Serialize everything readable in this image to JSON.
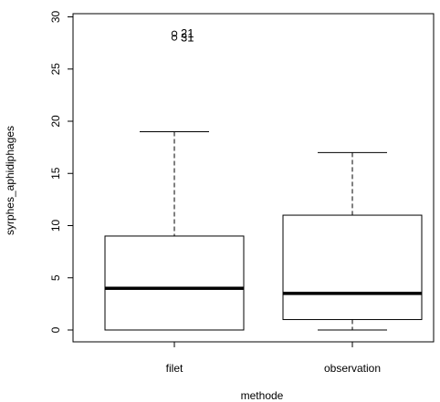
{
  "chart_data": {
    "type": "boxplot",
    "title": "",
    "xlabel": "methode",
    "ylabel": "syrphes_aphidiphages",
    "ylim": [
      -1,
      30
    ],
    "yticks": [
      0,
      5,
      10,
      15,
      20,
      25,
      30
    ],
    "ytick_labels": [
      "0",
      "5",
      "10",
      "15",
      "20",
      "25",
      "30"
    ],
    "categories": [
      "filet",
      "observation"
    ],
    "boxes": [
      {
        "category": "filet",
        "whisker_low": 0,
        "q1": 0,
        "median": 4,
        "q3": 9,
        "whisker_high": 19,
        "outliers": [
          {
            "value": 28.4,
            "label": "21"
          },
          {
            "value": 28.0,
            "label": "31"
          }
        ]
      },
      {
        "category": "observation",
        "whisker_low": 0,
        "q1": 1,
        "median": 3.5,
        "q3": 11,
        "whisker_high": 17,
        "outliers": []
      }
    ],
    "grid": false,
    "legend": "none"
  }
}
